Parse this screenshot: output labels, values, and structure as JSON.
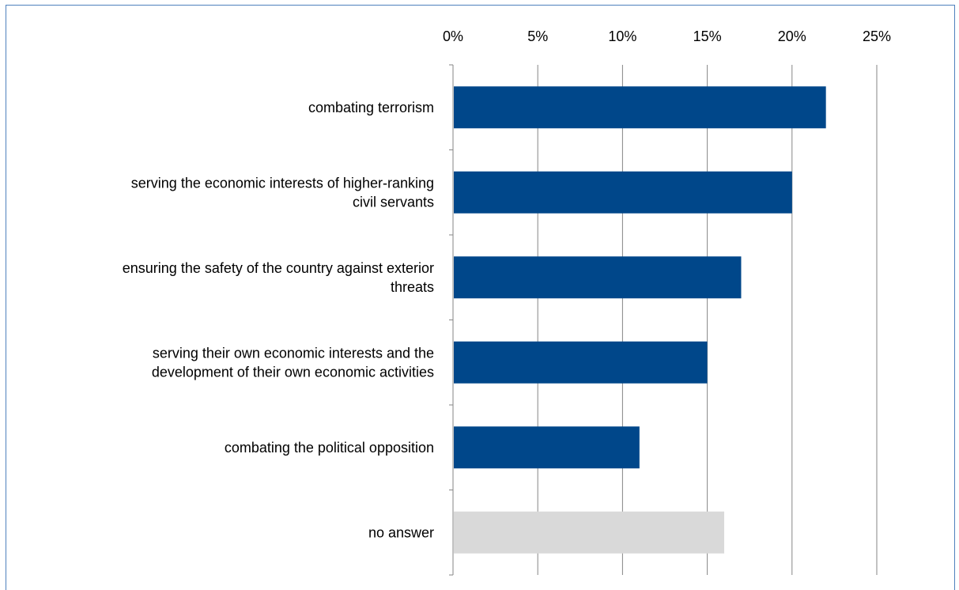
{
  "chart_data": {
    "type": "bar",
    "orientation": "horizontal",
    "title": "",
    "xlabel": "",
    "ylabel": "",
    "xlim": [
      0,
      25
    ],
    "x_ticks": [
      "0%",
      "5%",
      "10%",
      "15%",
      "20%",
      "25%"
    ],
    "x_tick_values": [
      0,
      5,
      10,
      15,
      20,
      25
    ],
    "axis_position": "top",
    "grid": true,
    "legend": "none",
    "categories": [
      [
        "combating terrorism"
      ],
      [
        "serving the economic interests of higher-ranking",
        "civil servants"
      ],
      [
        "ensuring the safety of the country against exterior",
        "threats"
      ],
      [
        "serving their own economic interests and the",
        "development of their own economic activities"
      ],
      [
        "combating the political opposition"
      ],
      [
        "no answer"
      ]
    ],
    "values": [
      22,
      20,
      17,
      15,
      11,
      16
    ],
    "bar_colors": [
      "#00478a",
      "#00478a",
      "#00478a",
      "#00478a",
      "#00478a",
      "#d9d9d9"
    ]
  },
  "colors": {
    "frame_border": "#4f81bd",
    "grid": "#868686",
    "bar_primary": "#00478a",
    "bar_neutral": "#d9d9d9"
  }
}
